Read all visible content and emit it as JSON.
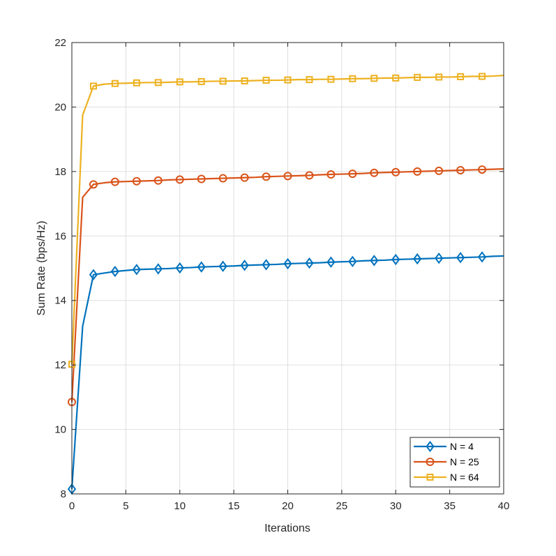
{
  "chart_data": {
    "type": "line",
    "title": "",
    "xlabel": "Iterations",
    "ylabel": "Sum Rate (bps/Hz)",
    "xlim": [
      0,
      40
    ],
    "ylim": [
      8,
      22
    ],
    "xticks": [
      0,
      5,
      10,
      15,
      20,
      25,
      30,
      35,
      40
    ],
    "yticks": [
      8,
      10,
      12,
      14,
      16,
      18,
      20,
      22
    ],
    "xtick_labels": [
      "0",
      "5",
      "10",
      "15",
      "20",
      "25",
      "30",
      "35",
      "40"
    ],
    "ytick_labels": [
      "8",
      "10",
      "12",
      "14",
      "16",
      "18",
      "20",
      "22"
    ],
    "grid": true,
    "legend_position": "bottom-right",
    "x": [
      0,
      1,
      2,
      3,
      4,
      5,
      6,
      7,
      8,
      9,
      10,
      11,
      12,
      13,
      14,
      15,
      16,
      17,
      18,
      19,
      20,
      21,
      22,
      23,
      24,
      25,
      26,
      27,
      28,
      29,
      30,
      31,
      32,
      33,
      34,
      35,
      36,
      37,
      38,
      39,
      40
    ],
    "series": [
      {
        "name": "N = 4",
        "color": "#0072BD",
        "marker": "diamond",
        "values": [
          8.15,
          13.2,
          14.8,
          14.85,
          14.9,
          14.93,
          14.96,
          14.97,
          14.98,
          14.99,
          15.01,
          15.02,
          15.04,
          15.05,
          15.06,
          15.07,
          15.09,
          15.1,
          15.11,
          15.12,
          15.14,
          15.15,
          15.16,
          15.17,
          15.19,
          15.2,
          15.21,
          15.23,
          15.24,
          15.25,
          15.27,
          15.28,
          15.29,
          15.3,
          15.31,
          15.32,
          15.33,
          15.34,
          15.35,
          15.37,
          15.38
        ]
      },
      {
        "name": "N = 25",
        "color": "#D95319",
        "marker": "circle",
        "values": [
          10.85,
          17.2,
          17.6,
          17.65,
          17.68,
          17.69,
          17.7,
          17.71,
          17.72,
          17.74,
          17.75,
          17.76,
          17.77,
          17.78,
          17.79,
          17.8,
          17.81,
          17.82,
          17.84,
          17.85,
          17.86,
          17.87,
          17.88,
          17.9,
          17.91,
          17.92,
          17.93,
          17.94,
          17.96,
          17.97,
          17.98,
          17.99,
          18.0,
          18.01,
          18.02,
          18.03,
          18.04,
          18.05,
          18.06,
          18.07,
          18.08
        ]
      },
      {
        "name": "N = 64",
        "color": "#EDB120",
        "marker": "square",
        "values": [
          12.02,
          19.75,
          20.65,
          20.71,
          20.73,
          20.74,
          20.75,
          20.76,
          20.76,
          20.77,
          20.78,
          20.78,
          20.79,
          20.8,
          20.8,
          20.81,
          20.81,
          20.82,
          20.83,
          20.83,
          20.84,
          20.85,
          20.85,
          20.86,
          20.86,
          20.87,
          20.88,
          20.88,
          20.89,
          20.9,
          20.9,
          20.91,
          20.92,
          20.92,
          20.93,
          20.93,
          20.94,
          20.95,
          20.95,
          20.96,
          20.98
        ]
      }
    ]
  }
}
